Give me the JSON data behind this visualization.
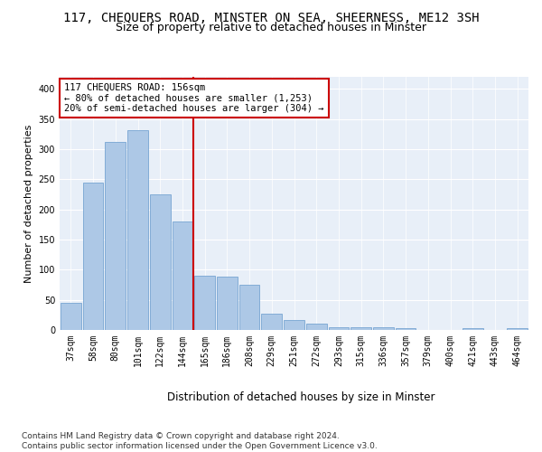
{
  "title1": "117, CHEQUERS ROAD, MINSTER ON SEA, SHEERNESS, ME12 3SH",
  "title2": "Size of property relative to detached houses in Minster",
  "xlabel": "Distribution of detached houses by size in Minster",
  "ylabel": "Number of detached properties",
  "bins": [
    "37sqm",
    "58sqm",
    "80sqm",
    "101sqm",
    "122sqm",
    "144sqm",
    "165sqm",
    "186sqm",
    "208sqm",
    "229sqm",
    "251sqm",
    "272sqm",
    "293sqm",
    "315sqm",
    "336sqm",
    "357sqm",
    "379sqm",
    "400sqm",
    "421sqm",
    "443sqm",
    "464sqm"
  ],
  "values": [
    45,
    245,
    312,
    332,
    225,
    180,
    90,
    88,
    75,
    27,
    16,
    10,
    5,
    5,
    5,
    3,
    0,
    0,
    3,
    0,
    3
  ],
  "bar_color": "#adc8e6",
  "bar_edge_color": "#6699cc",
  "vline_x_index": 6,
  "vline_color": "#cc0000",
  "annotation_text": "117 CHEQUERS ROAD: 156sqm\n← 80% of detached houses are smaller (1,253)\n20% of semi-detached houses are larger (304) →",
  "annotation_box_color": "#ffffff",
  "annotation_box_edge": "#cc0000",
  "ylim": [
    0,
    420
  ],
  "yticks": [
    0,
    50,
    100,
    150,
    200,
    250,
    300,
    350,
    400
  ],
  "footnote": "Contains HM Land Registry data © Crown copyright and database right 2024.\nContains public sector information licensed under the Open Government Licence v3.0.",
  "bg_color": "#e8eff8",
  "fig_bg": "#ffffff",
  "title1_fontsize": 10,
  "title2_fontsize": 9,
  "tick_fontsize": 7,
  "xlabel_fontsize": 8.5,
  "ylabel_fontsize": 8,
  "footnote_fontsize": 6.5
}
